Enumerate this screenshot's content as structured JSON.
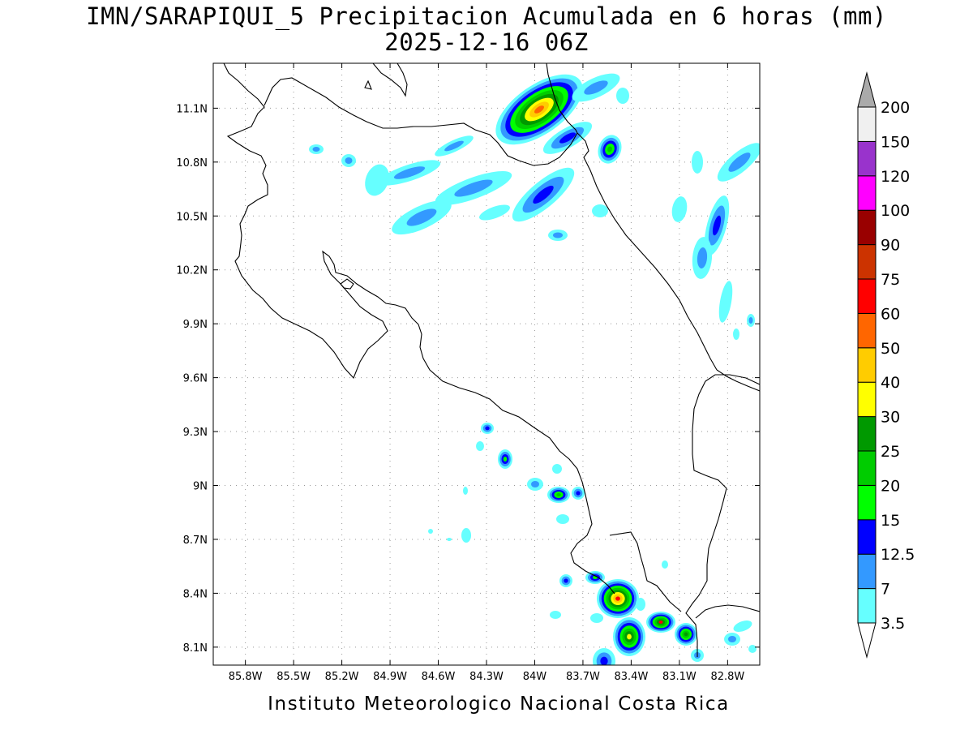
{
  "title": {
    "line1": "IMN/SARAPIQUI_5 Precipitacion Acumulada en 6 horas (mm)",
    "line2": "2025-12-16 06Z"
  },
  "footer": "Instituto Meteorologico Nacional Costa Rica",
  "map": {
    "lon_range": [
      -86.0,
      -82.6
    ],
    "lat_range": [
      8.0,
      11.35
    ],
    "lon_ticks": [
      "85.8W",
      "85.5W",
      "85.2W",
      "84.9W",
      "84.6W",
      "84.3W",
      "84W",
      "83.7W",
      "83.4W",
      "83.1W",
      "82.8W"
    ],
    "lat_ticks": [
      "8.1N",
      "8.4N",
      "8.7N",
      "9N",
      "9.3N",
      "9.6N",
      "9.9N",
      "10.2N",
      "10.5N",
      "10.8N",
      "11.1N"
    ]
  },
  "colorbar": {
    "labels": [
      "3.5",
      "7",
      "12.5",
      "15",
      "20",
      "25",
      "30",
      "40",
      "50",
      "60",
      "75",
      "90",
      "100",
      "120",
      "150",
      "200"
    ],
    "colors": [
      "#66ffff",
      "#3399ff",
      "#0000ff",
      "#00ff00",
      "#00cc00",
      "#009900",
      "#ffff00",
      "#ffcc00",
      "#ff6600",
      "#ff0000",
      "#cc3300",
      "#990000",
      "#ff00ff",
      "#9933cc",
      "#f0f0f0",
      "#aaaaaa"
    ]
  }
}
